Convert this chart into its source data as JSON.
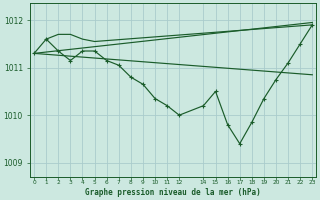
{
  "background_color": "#cce8e0",
  "grid_color": "#aacccc",
  "line_color": "#1a5c2a",
  "title": "Graphe pression niveau de la mer (hPa)",
  "ylim": [
    1008.7,
    1012.35
  ],
  "yticks": [
    1009,
    1010,
    1011,
    1012
  ],
  "xlim": [
    -0.3,
    23.3
  ],
  "xticks": [
    0,
    1,
    2,
    3,
    4,
    5,
    6,
    7,
    8,
    9,
    10,
    11,
    12,
    14,
    15,
    16,
    17,
    18,
    19,
    20,
    21,
    22,
    23
  ],
  "series_main": {
    "x": [
      0,
      1,
      2,
      3,
      4,
      5,
      6,
      7,
      8,
      9,
      10,
      11,
      12,
      14,
      15,
      16,
      17,
      18,
      19,
      20,
      21,
      22,
      23
    ],
    "y": [
      1011.3,
      1011.6,
      1011.35,
      1011.15,
      1011.35,
      1011.35,
      1011.15,
      1011.05,
      1010.8,
      1010.65,
      1010.35,
      1010.2,
      1010.0,
      1010.2,
      1010.5,
      1009.8,
      1009.4,
      1009.85,
      1010.35,
      1010.75,
      1011.1,
      1011.5,
      1011.9
    ]
  },
  "series_diag_top": {
    "x": [
      0,
      23
    ],
    "y": [
      1011.3,
      1011.95
    ]
  },
  "series_diag_mid": {
    "x": [
      0,
      23
    ],
    "y": [
      1011.3,
      1010.85
    ]
  },
  "series_diag_upper": {
    "x": [
      1,
      2,
      3,
      4,
      5,
      23
    ],
    "y": [
      1011.6,
      1011.7,
      1011.7,
      1011.6,
      1011.55,
      1011.9
    ]
  }
}
